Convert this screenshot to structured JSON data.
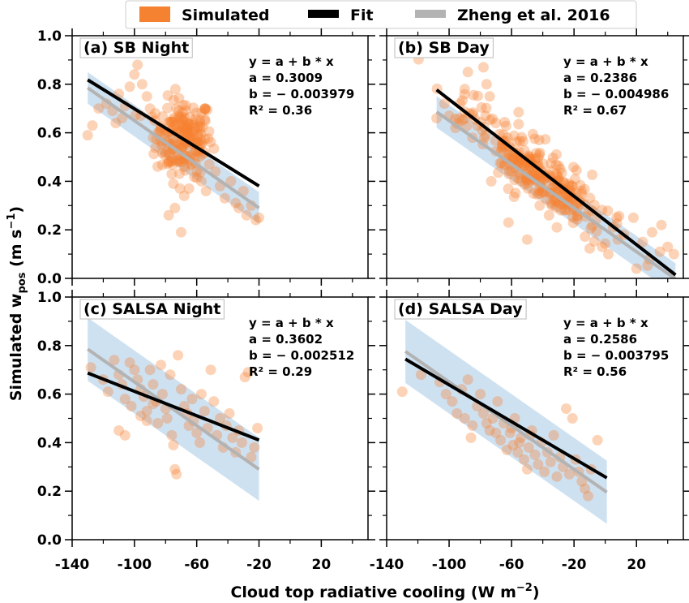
{
  "legend": [
    {
      "label": "Simulated",
      "color": "#f58231",
      "kind": "patch"
    },
    {
      "label": "Fit",
      "color": "#000000",
      "kind": "line"
    },
    {
      "label": "Zheng et al. 2016",
      "color": "#b3b3b3",
      "kind": "line"
    }
  ],
  "xlabel": "Cloud top radiative cooling (W m",
  "xlabel_sup": "−2",
  "xlabel_tail": ")",
  "ylabel": "Simulated w",
  "ylabel_sub": "pos",
  "ylabel_units_pre": " (m s",
  "ylabel_units_sup": "−1",
  "ylabel_units_post": ")",
  "chart_data": [
    {
      "type": "scatter",
      "title": "(a) SB Night",
      "xlim": [
        -140,
        50
      ],
      "ylim": [
        0,
        1
      ],
      "xticks": [
        -140,
        -100,
        -60,
        -20,
        20
      ],
      "xticklabels": [],
      "yticks": [
        0.0,
        0.2,
        0.4,
        0.6,
        0.8,
        1.0
      ],
      "yticklabels": [
        "0.0",
        "0.2",
        "0.4",
        "0.6",
        "0.8",
        "1.0"
      ],
      "equation": [
        "y = a + b * x",
        "a = 0.3009",
        "b = − 0.003979",
        "R² = 0.36"
      ],
      "fit": {
        "a": 0.3009,
        "b": -0.003979,
        "x_range": [
          -130,
          -20
        ]
      },
      "reference": {
        "a": 0.2,
        "b": -0.0045,
        "x_range": [
          -130,
          -20
        ],
        "band": 0.065
      },
      "point_cluster": {
        "center": [
          -68,
          0.58
        ],
        "spread": [
          9,
          0.08
        ],
        "n": 180
      },
      "points": [
        [
          -130,
          0.59
        ],
        [
          -127,
          0.63
        ],
        [
          -123,
          0.7
        ],
        [
          -118,
          0.72
        ],
        [
          -114,
          0.69
        ],
        [
          -110,
          0.76
        ],
        [
          -106,
          0.71
        ],
        [
          -103,
          0.79
        ],
        [
          -100,
          0.84
        ],
        [
          -98,
          0.88
        ],
        [
          -95,
          0.8
        ],
        [
          -92,
          0.75
        ],
        [
          -90,
          0.7
        ],
        [
          -87,
          0.65
        ],
        [
          -85,
          0.6
        ],
        [
          -82,
          0.56
        ],
        [
          -80,
          0.52
        ],
        [
          -78,
          0.48
        ],
        [
          -76,
          0.43
        ],
        [
          -75,
          0.39
        ],
        [
          -74,
          0.29
        ],
        [
          -78,
          0.26
        ],
        [
          -70,
          0.19
        ],
        [
          -68,
          0.34
        ],
        [
          -65,
          0.37
        ],
        [
          -60,
          0.44
        ],
        [
          -57,
          0.4
        ],
        [
          -54,
          0.36
        ],
        [
          -52,
          0.47
        ],
        [
          -48,
          0.44
        ],
        [
          -45,
          0.38
        ],
        [
          -42,
          0.33
        ],
        [
          -38,
          0.4
        ],
        [
          -35,
          0.31
        ],
        [
          -33,
          0.29
        ],
        [
          -30,
          0.36
        ],
        [
          -28,
          0.26
        ],
        [
          -25,
          0.3
        ],
        [
          -22,
          0.24
        ],
        [
          -20,
          0.25
        ],
        [
          -108,
          0.66
        ],
        [
          -112,
          0.64
        ],
        [
          -96,
          0.67
        ],
        [
          -88,
          0.58
        ],
        [
          -83,
          0.62
        ],
        [
          -79,
          0.6
        ]
      ]
    },
    {
      "type": "scatter",
      "title": "(b) SB Day",
      "xlim": [
        -140,
        50
      ],
      "ylim": [
        0,
        1
      ],
      "xticks": [
        -140,
        -100,
        -60,
        -20,
        20
      ],
      "xticklabels": [],
      "yticks": [
        0.0,
        0.2,
        0.4,
        0.6,
        0.8,
        1.0
      ],
      "yticklabels": [],
      "equation": [
        "y = a + b * x",
        "a = 0.2386",
        "b = − 0.004986",
        "R² = 0.67"
      ],
      "fit": {
        "a": 0.2386,
        "b": -0.004986,
        "x_range": [
          -108,
          45
        ]
      },
      "reference": {
        "a": 0.2,
        "b": -0.0045,
        "x_range": [
          -108,
          45
        ],
        "band": 0.065
      },
      "point_cluster": {
        "center": [
          -45,
          0.42
        ],
        "spread": [
          22,
          0.1
        ],
        "n": 260
      },
      "points": [
        [
          -108,
          0.66
        ],
        [
          -103,
          0.72
        ],
        [
          -100,
          0.67
        ],
        [
          -96,
          0.62
        ],
        [
          -93,
          0.72
        ],
        [
          -90,
          0.78
        ],
        [
          -87,
          0.68
        ],
        [
          -85,
          0.58
        ],
        [
          -82,
          0.63
        ],
        [
          -78,
          0.87
        ],
        [
          -76,
          0.8
        ],
        [
          -74,
          0.75
        ],
        [
          -73,
          0.4
        ],
        [
          -70,
          0.64
        ],
        [
          -66,
          0.55
        ],
        [
          -62,
          0.23
        ],
        [
          -58,
          0.48
        ],
        [
          -54,
          0.4
        ],
        [
          -50,
          0.16
        ],
        [
          -46,
          0.35
        ],
        [
          -42,
          0.3
        ],
        [
          -36,
          0.26
        ],
        [
          -31,
          0.21
        ],
        [
          -26,
          0.28
        ],
        [
          -21,
          0.38
        ],
        [
          -16,
          0.32
        ],
        [
          -11,
          0.27
        ],
        [
          -6,
          0.24
        ],
        [
          -2,
          0.13
        ],
        [
          2,
          0.1
        ],
        [
          5,
          0.21
        ],
        [
          8,
          0.16
        ],
        [
          12,
          0.18
        ],
        [
          18,
          0.25
        ],
        [
          24,
          0.15
        ],
        [
          30,
          0.19
        ],
        [
          35,
          0.11
        ],
        [
          40,
          0.13
        ],
        [
          44,
          0.1
        ],
        [
          20,
          0.04
        ],
        [
          28,
          0.08
        ],
        [
          36,
          0.22
        ],
        [
          -88,
          0.85
        ]
      ]
    },
    {
      "type": "scatter",
      "title": "(c) SALSA Night",
      "xlim": [
        -140,
        50
      ],
      "ylim": [
        0,
        1
      ],
      "xticks": [
        -140,
        -100,
        -60,
        -20,
        20
      ],
      "xticklabels": [
        "-140",
        "-100",
        "-60",
        "-20",
        "20"
      ],
      "yticks": [
        0.0,
        0.2,
        0.4,
        0.6,
        0.8,
        1.0
      ],
      "yticklabels": [
        "0.0",
        "0.2",
        "0.4",
        "0.6",
        "0.8",
        "1.0"
      ],
      "equation": [
        "y = a + b * x",
        "a = 0.3602",
        "b = − 0.002512",
        "R² = 0.29"
      ],
      "fit": {
        "a": 0.3602,
        "b": -0.002512,
        "x_range": [
          -130,
          -20
        ]
      },
      "reference": {
        "a": 0.2,
        "b": -0.0045,
        "x_range": [
          -130,
          -20
        ],
        "band": 0.13
      },
      "points": [
        [
          -128,
          0.71
        ],
        [
          -120,
          0.66
        ],
        [
          -117,
          0.61
        ],
        [
          -113,
          0.74
        ],
        [
          -110,
          0.68
        ],
        [
          -108,
          0.64
        ],
        [
          -106,
          0.58
        ],
        [
          -103,
          0.73
        ],
        [
          -102,
          0.55
        ],
        [
          -100,
          0.7
        ],
        [
          -98,
          0.66
        ],
        [
          -96,
          0.62
        ],
        [
          -94,
          0.59
        ],
        [
          -92,
          0.53
        ],
        [
          -90,
          0.7
        ],
        [
          -88,
          0.64
        ],
        [
          -86,
          0.57
        ],
        [
          -85,
          0.48
        ],
        [
          -83,
          0.72
        ],
        [
          -82,
          0.6
        ],
        [
          -80,
          0.54
        ],
        [
          -79,
          0.5
        ],
        [
          -77,
          0.68
        ],
        [
          -76,
          0.43
        ],
        [
          -75,
          0.39
        ],
        [
          -74,
          0.29
        ],
        [
          -73,
          0.27
        ],
        [
          -72,
          0.76
        ],
        [
          -70,
          0.62
        ],
        [
          -68,
          0.55
        ],
        [
          -66,
          0.52
        ],
        [
          -65,
          0.47
        ],
        [
          -63,
          0.58
        ],
        [
          -62,
          0.49
        ],
        [
          -60,
          0.44
        ],
        [
          -58,
          0.4
        ],
        [
          -57,
          0.6
        ],
        [
          -55,
          0.53
        ],
        [
          -53,
          0.46
        ],
        [
          -51,
          0.7
        ],
        [
          -49,
          0.57
        ],
        [
          -47,
          0.43
        ],
        [
          -45,
          0.5
        ],
        [
          -43,
          0.38
        ],
        [
          -41,
          0.47
        ],
        [
          -39,
          0.52
        ],
        [
          -37,
          0.42
        ],
        [
          -35,
          0.36
        ],
        [
          -33,
          0.45
        ],
        [
          -31,
          0.4
        ],
        [
          -29,
          0.67
        ],
        [
          -27,
          0.69
        ],
        [
          -25,
          0.34
        ],
        [
          -23,
          0.38
        ],
        [
          -21,
          0.46
        ],
        [
          -110,
          0.45
        ],
        [
          -106,
          0.43
        ],
        [
          -92,
          0.49
        ],
        [
          -88,
          0.56
        ],
        [
          -96,
          0.51
        ]
      ]
    },
    {
      "type": "scatter",
      "title": "(d) SALSA Day",
      "xlim": [
        -140,
        50
      ],
      "ylim": [
        0,
        1
      ],
      "xticks": [
        -140,
        -100,
        -60,
        -20,
        20
      ],
      "xticklabels": [
        "-140",
        "-100",
        "-60",
        "-20",
        "20"
      ],
      "yticks": [
        0.0,
        0.2,
        0.4,
        0.6,
        0.8,
        1.0
      ],
      "yticklabels": [],
      "equation": [
        "y = a + b * x",
        "a = 0.2586",
        "b = − 0.003795",
        "R² = 0.56"
      ],
      "fit": {
        "a": 0.2586,
        "b": -0.003795,
        "x_range": [
          -128,
          1
        ]
      },
      "reference": {
        "a": 0.2,
        "b": -0.0045,
        "x_range": [
          -128,
          1
        ],
        "band": 0.13
      },
      "points": [
        [
          -130,
          0.61
        ],
        [
          -118,
          0.68
        ],
        [
          -106,
          0.65
        ],
        [
          -102,
          0.6
        ],
        [
          -98,
          0.57
        ],
        [
          -95,
          0.52
        ],
        [
          -92,
          0.62
        ],
        [
          -90,
          0.5
        ],
        [
          -88,
          0.66
        ],
        [
          -85,
          0.47
        ],
        [
          -82,
          0.55
        ],
        [
          -80,
          0.6
        ],
        [
          -78,
          0.52
        ],
        [
          -76,
          0.48
        ],
        [
          -74,
          0.45
        ],
        [
          -72,
          0.5
        ],
        [
          -70,
          0.44
        ],
        [
          -69,
          0.57
        ],
        [
          -67,
          0.41
        ],
        [
          -65,
          0.48
        ],
        [
          -63,
          0.37
        ],
        [
          -61,
          0.44
        ],
        [
          -59,
          0.39
        ],
        [
          -58,
          0.5
        ],
        [
          -56,
          0.36
        ],
        [
          -54,
          0.42
        ],
        [
          -52,
          0.33
        ],
        [
          -50,
          0.29
        ],
        [
          -49,
          0.38
        ],
        [
          -47,
          0.45
        ],
        [
          -45,
          0.35
        ],
        [
          -43,
          0.31
        ],
        [
          -41,
          0.4
        ],
        [
          -39,
          0.28
        ],
        [
          -37,
          0.36
        ],
        [
          -35,
          0.32
        ],
        [
          -33,
          0.43
        ],
        [
          -31,
          0.26
        ],
        [
          -29,
          0.34
        ],
        [
          -27,
          0.3
        ],
        [
          -25,
          0.54
        ],
        [
          -23,
          0.27
        ],
        [
          -21,
          0.5
        ],
        [
          -19,
          0.33
        ],
        [
          -17,
          0.28
        ],
        [
          -15,
          0.24
        ],
        [
          -13,
          0.21
        ],
        [
          -11,
          0.18
        ],
        [
          -9,
          0.29
        ],
        [
          -5,
          0.41
        ],
        [
          -86,
          0.42
        ],
        [
          -60,
          0.46
        ],
        [
          -55,
          0.4
        ],
        [
          -48,
          0.43
        ]
      ]
    }
  ]
}
